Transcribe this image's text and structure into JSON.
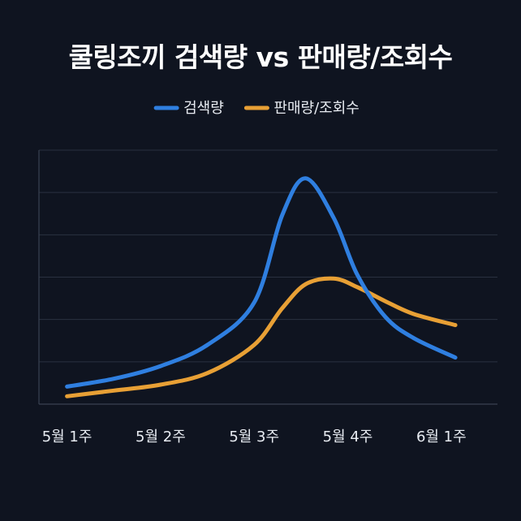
{
  "chart_data": {
    "type": "line",
    "title": "쿨링조끼 검색량 vs 판매량/조회수",
    "categories": [
      "5월 1주",
      "5월 2주",
      "5월 3주",
      "5월 4주",
      "6월 1주"
    ],
    "x": [
      0,
      0.5,
      1,
      1.5,
      2,
      2.3,
      2.55,
      2.85,
      3.1,
      3.4,
      3.7,
      4.15
    ],
    "series": [
      {
        "name": "검색량",
        "color": "#2f7fe0",
        "values": [
          6.2,
          9.0,
          13.5,
          21.0,
          36.0,
          67.0,
          80.0,
          66.0,
          46.0,
          31.0,
          23.5,
          16.5
        ]
      },
      {
        "name": "판매량/조회수",
        "color": "#e8a035",
        "values": [
          2.8,
          4.8,
          6.9,
          11.0,
          21.0,
          34.0,
          42.5,
          44.5,
          41.5,
          36.5,
          32.0,
          28.0
        ]
      }
    ],
    "xlim": [
      -0.3,
      4.6
    ],
    "ylim": [
      0,
      90
    ],
    "y_gridlines": [
      15,
      30,
      45,
      60,
      75,
      90
    ],
    "grid": true,
    "legend_position": "top-center",
    "background": "#0f1420"
  }
}
